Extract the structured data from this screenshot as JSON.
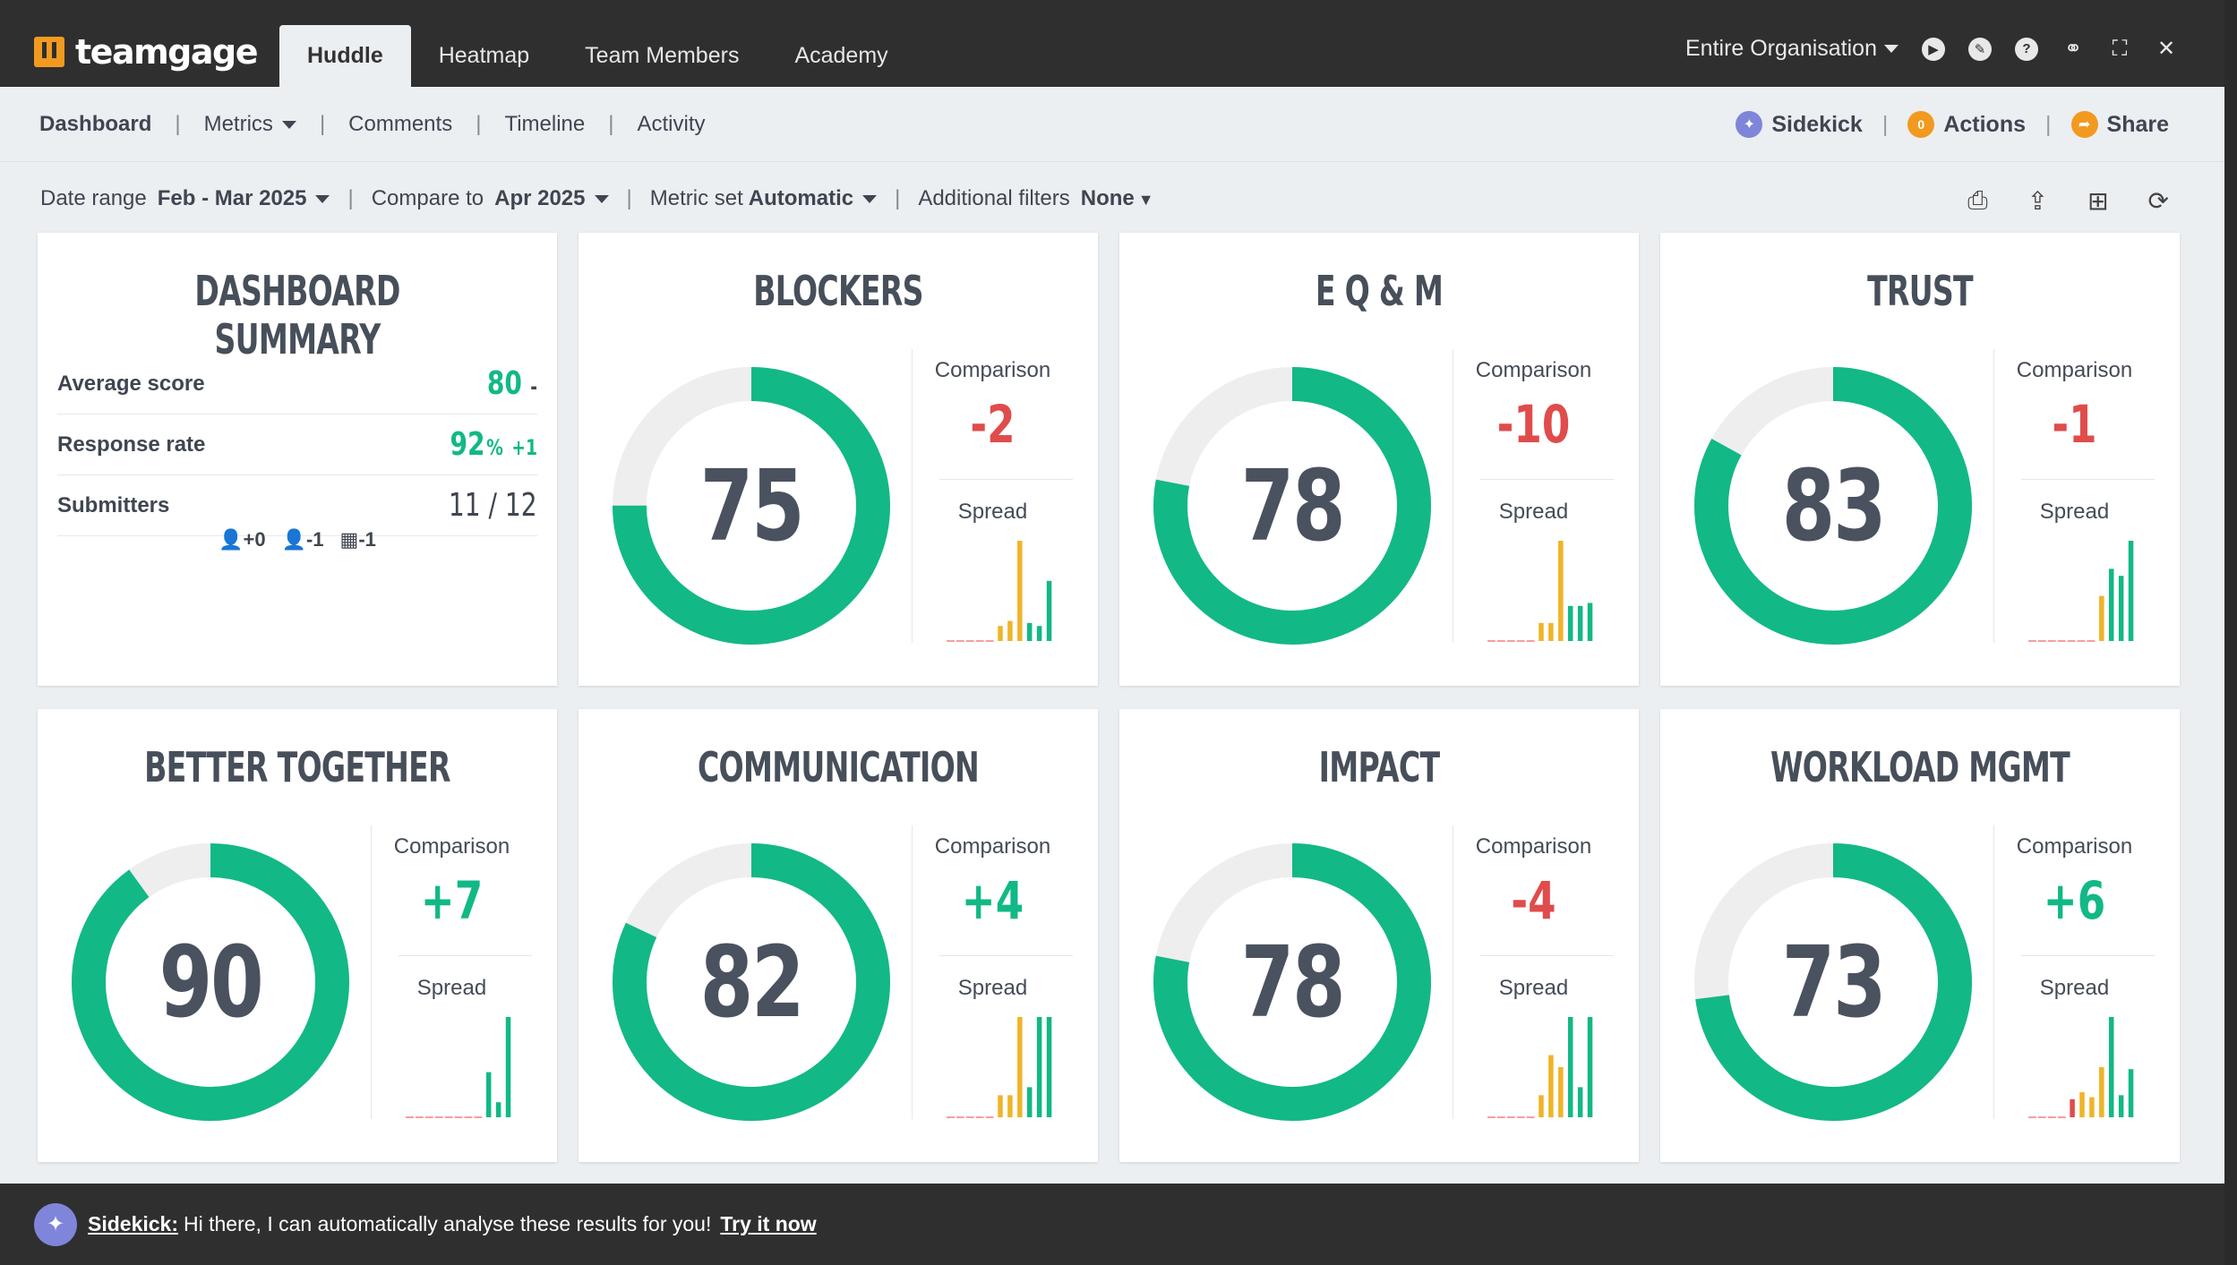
{
  "app": {
    "logo_text": "teamgage",
    "tabs": [
      "Huddle",
      "Heatmap",
      "Team Members",
      "Academy"
    ],
    "active_tab": "Huddle",
    "org_select": "Entire Organisation",
    "icons": [
      "play-icon",
      "chat-icon",
      "help-icon",
      "link-icon",
      "fullscreen-icon",
      "close-icon"
    ]
  },
  "subnav": {
    "items": [
      "Dashboard",
      "Metrics",
      "Comments",
      "Timeline",
      "Activity"
    ],
    "sidekick": "Sidekick",
    "actions": "Actions",
    "actions_count": "0",
    "share": "Share"
  },
  "filters": {
    "date_range_label": "Date range",
    "date_range_value": "Feb - Mar 2025",
    "compare_label": "Compare to",
    "compare_value": "Apr 2025",
    "metric_set_label": "Metric set",
    "metric_set_value": "Automatic",
    "additional_label": "Additional filters",
    "additional_value": "None"
  },
  "summary": {
    "title": "DASHBOARD SUMMARY",
    "avg_label": "Average score",
    "avg_value": "80",
    "avg_delta": "-",
    "resp_label": "Response rate",
    "resp_value": "92",
    "resp_unit": "%",
    "resp_delta": "+1",
    "sub_label": "Submitters",
    "sub_value": "11 / 12",
    "footer": [
      "+0",
      "-1",
      "-1"
    ]
  },
  "labels": {
    "comparison": "Comparison",
    "spread": "Spread"
  },
  "colors": {
    "positive": "#12b885",
    "negative": "#e04b4b",
    "track": "#eeeeee",
    "bar_green": "#12b885",
    "bar_yellow": "#f0b429",
    "bar_red": "#e04b4b"
  },
  "metrics": [
    {
      "title": "BLOCKERS",
      "score": 75,
      "comparison": "-2",
      "sign": "neg",
      "spread": [
        0,
        0,
        0,
        0,
        0,
        0.15,
        0.2,
        1.0,
        0.18,
        0.15,
        0.6
      ]
    },
    {
      "title": "E Q & M",
      "score": 78,
      "comparison": "-10",
      "sign": "neg",
      "spread": [
        0,
        0,
        0,
        0,
        0,
        0.18,
        0.18,
        1.0,
        0.35,
        0.35,
        0.38
      ]
    },
    {
      "title": "TRUST",
      "score": 83,
      "comparison": "-1",
      "sign": "neg",
      "spread": [
        0,
        0,
        0,
        0,
        0,
        0,
        0,
        0.45,
        0.72,
        0.65,
        1.0
      ]
    },
    {
      "title": "BETTER TOGETHER",
      "score": 90,
      "comparison": "+7",
      "sign": "pos",
      "spread": [
        0,
        0,
        0,
        0,
        0,
        0,
        0,
        0,
        0.45,
        0.15,
        1.0
      ]
    },
    {
      "title": "COMMUNICATION",
      "score": 82,
      "comparison": "+4",
      "sign": "pos",
      "spread": [
        0,
        0,
        0,
        0,
        0,
        0.22,
        0.22,
        1.0,
        0.3,
        1.0,
        1.0
      ]
    },
    {
      "title": "IMPACT",
      "score": 78,
      "comparison": "-4",
      "sign": "neg",
      "spread": [
        0,
        0,
        0,
        0,
        0,
        0.22,
        0.62,
        0.5,
        1.0,
        0.3,
        1.0
      ]
    },
    {
      "title": "WORKLOAD MGMT",
      "score": 73,
      "comparison": "+6",
      "sign": "pos",
      "spread": [
        0,
        0,
        0,
        0,
        0.18,
        0.25,
        0.2,
        0.5,
        1.0,
        0.22,
        0.48
      ]
    }
  ],
  "sidekick_bar": {
    "name": "Sidekick:",
    "message": "Hi there, I can automatically analyse these results for you!",
    "link": "Try it now"
  }
}
